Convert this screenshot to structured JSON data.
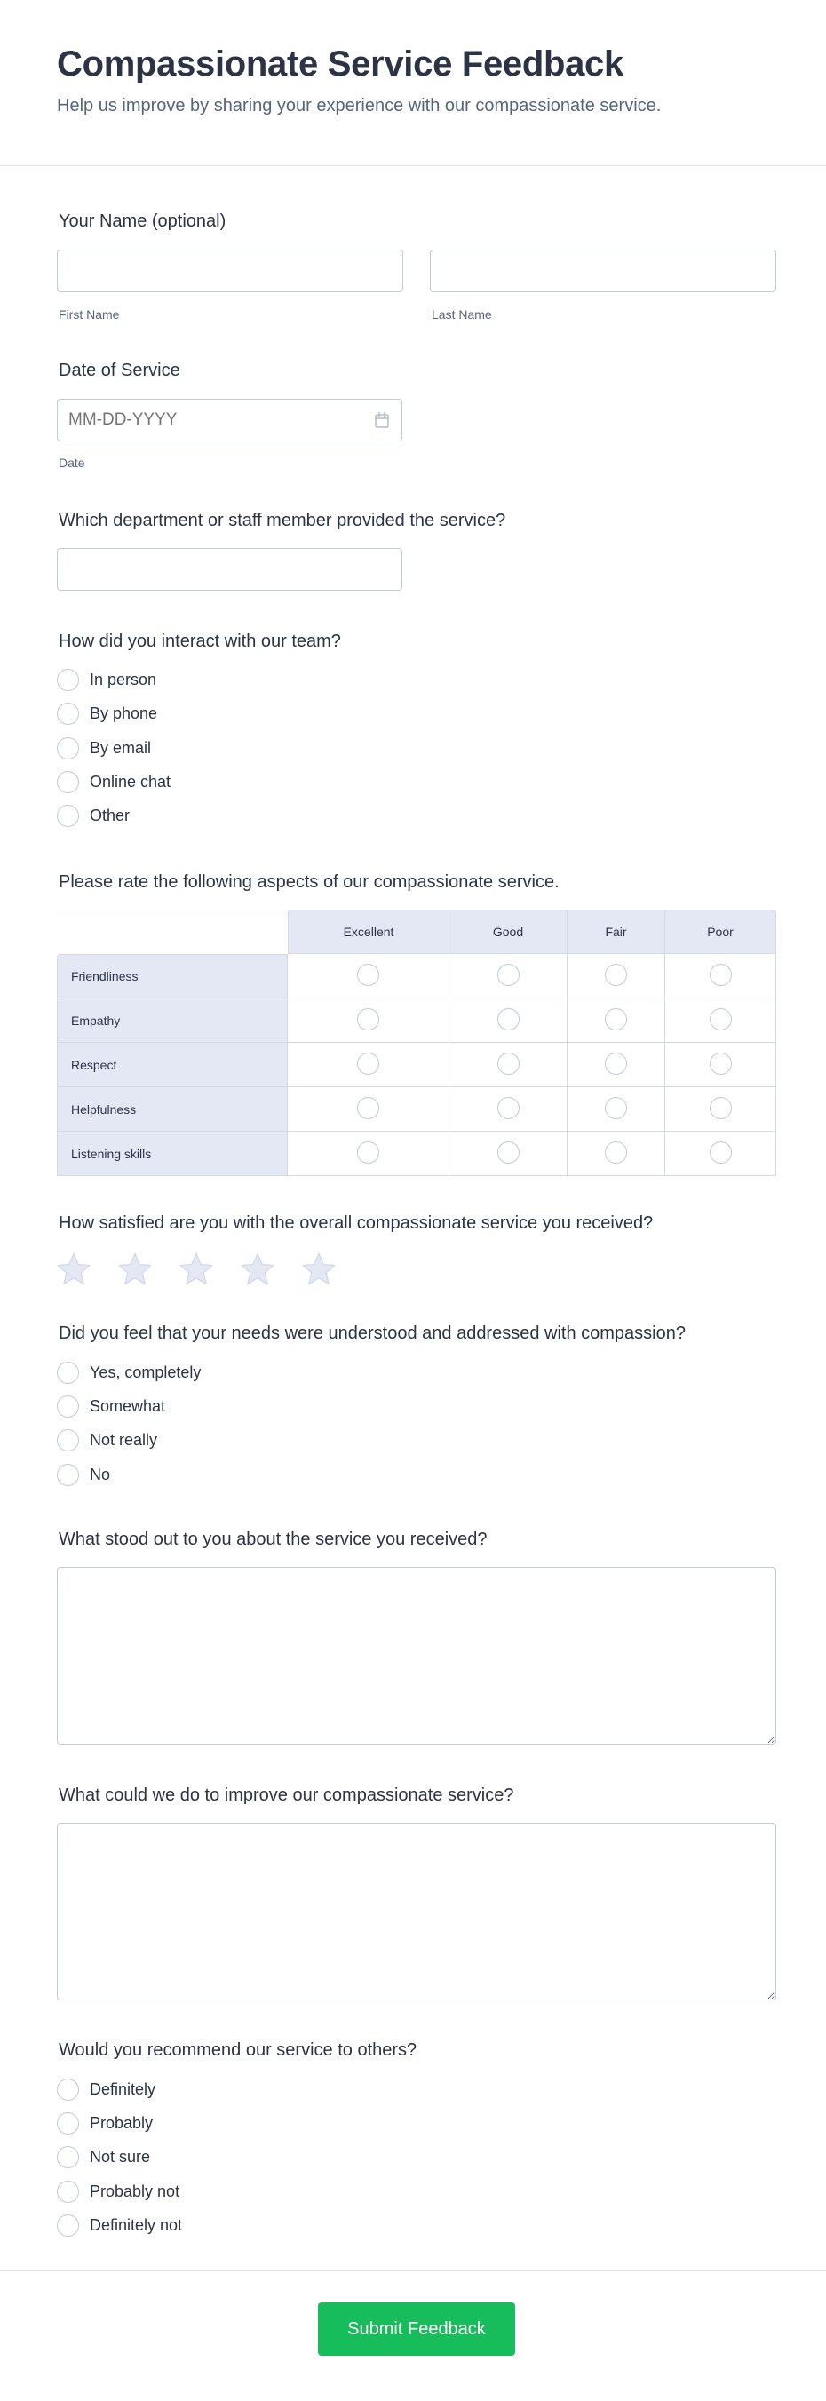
{
  "header": {
    "title": "Compassionate Service Feedback",
    "subtitle": "Help us improve by sharing your experience with our compassionate service."
  },
  "name": {
    "label": "Your Name (optional)",
    "first_label": "First Name",
    "last_label": "Last Name",
    "first_value": "",
    "last_value": ""
  },
  "date": {
    "label": "Date of Service",
    "placeholder": "MM-DD-YYYY",
    "sublabel": "Date",
    "icon": "calendar-icon"
  },
  "department": {
    "label": "Which department or staff member provided the service?",
    "value": ""
  },
  "interaction": {
    "label": "How did you interact with our team?",
    "options": [
      "In person",
      "By phone",
      "By email",
      "Online chat",
      "Other"
    ]
  },
  "matrix": {
    "label": "Please rate the following aspects of our compassionate service.",
    "columns": [
      "Excellent",
      "Good",
      "Fair",
      "Poor"
    ],
    "rows": [
      "Friendliness",
      "Empathy",
      "Respect",
      "Helpfulness",
      "Listening skills"
    ]
  },
  "satisfaction": {
    "label": "How satisfied are you with the overall compassionate service you received?",
    "max_stars": 5,
    "rating": 0,
    "star_color": "#e3e8f4"
  },
  "understood": {
    "label": "Did you feel that your needs were understood and addressed with compassion?",
    "options": [
      "Yes, completely",
      "Somewhat",
      "Not really",
      "No"
    ]
  },
  "stood_out": {
    "label": "What stood out to you about the service you received?",
    "value": ""
  },
  "improve": {
    "label": "What could we do to improve our compassionate service?",
    "value": ""
  },
  "recommend": {
    "label": "Would you recommend our service to others?",
    "options": [
      "Definitely",
      "Probably",
      "Not sure",
      "Probably not",
      "Definitely not"
    ]
  },
  "submit": {
    "label": "Submit Feedback",
    "color": "#18bd5b"
  }
}
